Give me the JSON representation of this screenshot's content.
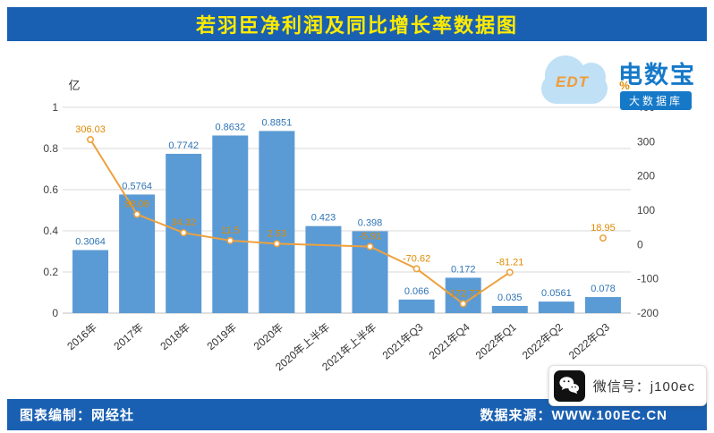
{
  "title": "若羽臣净利润及同比增长率数据图",
  "logo": {
    "brand": "电数宝",
    "abbr": "EDT",
    "tagline": "大数据库"
  },
  "footer": {
    "left": "图表编制：网经社",
    "right": "数据来源：WWW.100EC.CN"
  },
  "wechat_badge": {
    "text": "微信号：j100ec",
    "icon": "wechat-icon"
  },
  "colors": {
    "brand_blue": "#1A60B2",
    "title_yellow": "#FFEB00",
    "bar": "#5B9BD5",
    "bar_label": "#2E74B5",
    "line": "#EDA13F",
    "line_label": "#E08A00",
    "grid": "#D9D9D9",
    "axis_text": "#404040",
    "logo_blue": "#1679C8",
    "cloud_blue": "#BFE0F5",
    "edt_orange": "#F29B38"
  },
  "chart_data": {
    "type": "bar+line",
    "title": "若羽臣净利润及同比增长率数据图",
    "categories": [
      "2016年",
      "2017年",
      "2018年",
      "2019年",
      "2020年",
      "2020年上半年",
      "2021年上半年",
      "2021年Q3",
      "2021年Q4",
      "2022年Q1",
      "2022年Q2",
      "2022年Q3"
    ],
    "series": [
      {
        "name": "净利润",
        "type": "bar",
        "axis": "left",
        "unit": "亿",
        "values": [
          0.3064,
          0.5764,
          0.7742,
          0.8632,
          0.8851,
          0.423,
          0.398,
          0.066,
          0.172,
          0.035,
          0.0561,
          0.078
        ]
      },
      {
        "name": "同比增长率",
        "type": "line",
        "axis": "right",
        "unit": "%",
        "values": [
          306.03,
          88.06,
          34.32,
          11.5,
          2.53,
          null,
          -5.91,
          -70.62,
          -172.77,
          -81.21,
          null,
          18.95
        ],
        "connected_through": "2022年Q1"
      }
    ],
    "left_axis": {
      "label": "亿",
      "min": 0,
      "max": 1,
      "ticks": [
        0,
        0.2,
        0.4,
        0.6,
        0.8,
        1
      ]
    },
    "right_axis": {
      "label": "%",
      "min": -200,
      "max": 400,
      "ticks": [
        -200,
        -100,
        0,
        100,
        200,
        300,
        400
      ]
    },
    "grid": true,
    "legend": "none"
  }
}
